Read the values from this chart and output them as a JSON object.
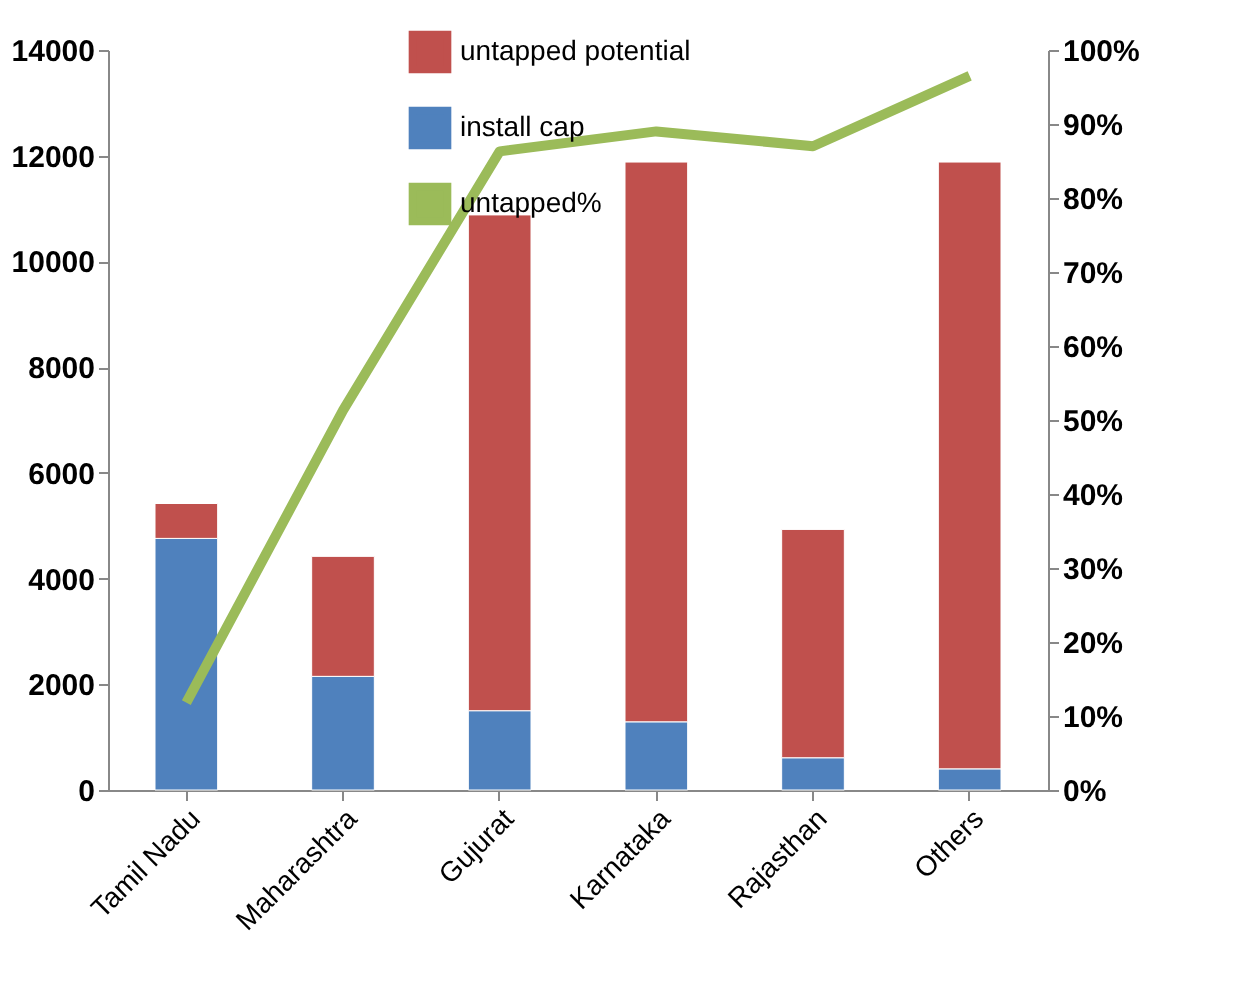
{
  "chart_data": {
    "type": "bar",
    "stacked": true,
    "categories": [
      "Tamil Nadu",
      "Maharashtra",
      "Gujurat",
      "Karnataka",
      "Rajasthan",
      "Others"
    ],
    "series": [
      {
        "name": "install cap",
        "color": "#4f81bd",
        "values": [
          4760,
          2150,
          1500,
          1290,
          610,
          400
        ]
      },
      {
        "name": "untapped potential",
        "color": "#c0504d",
        "values": [
          660,
          2270,
          9380,
          10590,
          4320,
          11480
        ]
      },
      {
        "name": "untapped%",
        "type": "line",
        "axis": "y2",
        "color": "#9bbb59",
        "values": [
          11.8,
          51.3,
          86.3,
          89,
          87,
          96.5
        ]
      }
    ],
    "ylim": [
      0,
      14000
    ],
    "yticks": [
      0,
      2000,
      4000,
      6000,
      8000,
      10000,
      12000,
      14000
    ],
    "y2lim": [
      0,
      100
    ],
    "y2ticks": [
      {
        "value": 0,
        "label": "0%"
      },
      {
        "value": 10,
        "label": "10%"
      },
      {
        "value": 20,
        "label": "20%"
      },
      {
        "value": 30,
        "label": "30%"
      },
      {
        "value": 40,
        "label": "40%"
      },
      {
        "value": 50,
        "label": "50%"
      },
      {
        "value": 60,
        "label": "60%"
      },
      {
        "value": 70,
        "label": "70%"
      },
      {
        "value": 80,
        "label": "80%"
      },
      {
        "value": 90,
        "label": "90%"
      },
      {
        "value": 100,
        "label": "100%"
      }
    ],
    "legend": "top",
    "grid": false
  }
}
